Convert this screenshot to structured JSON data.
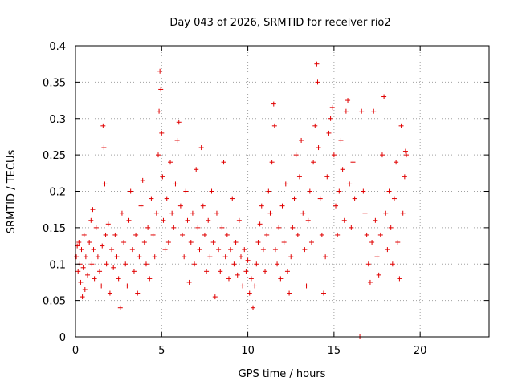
{
  "chart_data": {
    "type": "scatter",
    "title": "Day 043 of 2026, SRMTID for receiver rio2",
    "xlabel": "GPS time / hours",
    "ylabel": "SRMTID / TECUs",
    "xlim": [
      0,
      24
    ],
    "ylim": [
      0,
      0.4
    ],
    "xticks": [
      0,
      5,
      10,
      15,
      20
    ],
    "yticks": [
      0,
      0.05,
      0.1,
      0.15,
      0.2,
      0.25,
      0.3,
      0.35,
      0.4
    ],
    "xtick_labels": [
      "0",
      "5",
      "10",
      "15",
      "20"
    ],
    "ytick_labels": [
      "0",
      "0.05",
      "0.1",
      "0.15",
      "0.2",
      "0.25",
      "0.3",
      "0.35",
      "0.4"
    ],
    "grid": true,
    "marker": "+",
    "color": "#e00000",
    "series": [
      {
        "name": "SRMTID",
        "points": [
          [
            0.05,
            0.11
          ],
          [
            0.1,
            0.125
          ],
          [
            0.15,
            0.09
          ],
          [
            0.2,
            0.13
          ],
          [
            0.25,
            0.1
          ],
          [
            0.3,
            0.075
          ],
          [
            0.35,
            0.12
          ],
          [
            0.4,
            0.055
          ],
          [
            0.45,
            0.095
          ],
          [
            0.5,
            0.14
          ],
          [
            0.55,
            0.065
          ],
          [
            0.6,
            0.11
          ],
          [
            0.7,
            0.085
          ],
          [
            0.8,
            0.13
          ],
          [
            0.9,
            0.16
          ],
          [
            0.95,
            0.1
          ],
          [
            1.0,
            0.175
          ],
          [
            1.05,
            0.12
          ],
          [
            1.1,
            0.08
          ],
          [
            1.2,
            0.15
          ],
          [
            1.3,
            0.11
          ],
          [
            1.4,
            0.09
          ],
          [
            1.5,
            0.07
          ],
          [
            1.55,
            0.125
          ],
          [
            1.6,
            0.29
          ],
          [
            1.65,
            0.26
          ],
          [
            1.7,
            0.21
          ],
          [
            1.75,
            0.14
          ],
          [
            1.8,
            0.1
          ],
          [
            1.9,
            0.155
          ],
          [
            2.0,
            0.06
          ],
          [
            2.1,
            0.12
          ],
          [
            2.2,
            0.095
          ],
          [
            2.3,
            0.14
          ],
          [
            2.4,
            0.11
          ],
          [
            2.5,
            0.08
          ],
          [
            2.6,
            0.04
          ],
          [
            2.7,
            0.17
          ],
          [
            2.8,
            0.13
          ],
          [
            2.9,
            0.1
          ],
          [
            3.0,
            0.07
          ],
          [
            3.1,
            0.16
          ],
          [
            3.2,
            0.2
          ],
          [
            3.3,
            0.12
          ],
          [
            3.4,
            0.09
          ],
          [
            3.5,
            0.14
          ],
          [
            3.6,
            0.06
          ],
          [
            3.7,
            0.11
          ],
          [
            3.8,
            0.18
          ],
          [
            3.9,
            0.215
          ],
          [
            4.0,
            0.13
          ],
          [
            4.1,
            0.1
          ],
          [
            4.2,
            0.15
          ],
          [
            4.3,
            0.08
          ],
          [
            4.4,
            0.19
          ],
          [
            4.5,
            0.14
          ],
          [
            4.6,
            0.11
          ],
          [
            4.7,
            0.17
          ],
          [
            4.8,
            0.25
          ],
          [
            4.85,
            0.31
          ],
          [
            4.9,
            0.365
          ],
          [
            4.95,
            0.34
          ],
          [
            5.0,
            0.28
          ],
          [
            5.05,
            0.22
          ],
          [
            5.1,
            0.16
          ],
          [
            5.2,
            0.12
          ],
          [
            5.3,
            0.19
          ],
          [
            5.4,
            0.13
          ],
          [
            5.5,
            0.24
          ],
          [
            5.6,
            0.17
          ],
          [
            5.7,
            0.15
          ],
          [
            5.8,
            0.21
          ],
          [
            5.9,
            0.27
          ],
          [
            6.0,
            0.295
          ],
          [
            6.1,
            0.18
          ],
          [
            6.2,
            0.14
          ],
          [
            6.3,
            0.11
          ],
          [
            6.4,
            0.2
          ],
          [
            6.5,
            0.16
          ],
          [
            6.6,
            0.075
          ],
          [
            6.7,
            0.13
          ],
          [
            6.8,
            0.17
          ],
          [
            6.9,
            0.1
          ],
          [
            7.0,
            0.23
          ],
          [
            7.1,
            0.15
          ],
          [
            7.2,
            0.12
          ],
          [
            7.3,
            0.26
          ],
          [
            7.4,
            0.18
          ],
          [
            7.5,
            0.14
          ],
          [
            7.6,
            0.09
          ],
          [
            7.7,
            0.16
          ],
          [
            7.8,
            0.11
          ],
          [
            7.9,
            0.2
          ],
          [
            8.0,
            0.13
          ],
          [
            8.1,
            0.055
          ],
          [
            8.2,
            0.17
          ],
          [
            8.3,
            0.12
          ],
          [
            8.4,
            0.09
          ],
          [
            8.5,
            0.15
          ],
          [
            8.6,
            0.24
          ],
          [
            8.7,
            0.11
          ],
          [
            8.8,
            0.14
          ],
          [
            8.9,
            0.08
          ],
          [
            9.0,
            0.12
          ],
          [
            9.1,
            0.19
          ],
          [
            9.2,
            0.1
          ],
          [
            9.3,
            0.13
          ],
          [
            9.4,
            0.085
          ],
          [
            9.5,
            0.16
          ],
          [
            9.6,
            0.11
          ],
          [
            9.7,
            0.07
          ],
          [
            9.8,
            0.12
          ],
          [
            9.9,
            0.09
          ],
          [
            10.0,
            0.105
          ],
          [
            10.1,
            0.06
          ],
          [
            10.2,
            0.08
          ],
          [
            10.3,
            0.04
          ],
          [
            10.4,
            0.07
          ],
          [
            10.5,
            0.1
          ],
          [
            10.6,
            0.13
          ],
          [
            10.7,
            0.155
          ],
          [
            10.8,
            0.18
          ],
          [
            10.9,
            0.12
          ],
          [
            11.0,
            0.09
          ],
          [
            11.1,
            0.14
          ],
          [
            11.2,
            0.2
          ],
          [
            11.3,
            0.17
          ],
          [
            11.4,
            0.24
          ],
          [
            11.5,
            0.32
          ],
          [
            11.55,
            0.29
          ],
          [
            11.6,
            0.12
          ],
          [
            11.7,
            0.1
          ],
          [
            11.8,
            0.15
          ],
          [
            11.9,
            0.08
          ],
          [
            12.0,
            0.18
          ],
          [
            12.1,
            0.13
          ],
          [
            12.2,
            0.21
          ],
          [
            12.3,
            0.09
          ],
          [
            12.4,
            0.06
          ],
          [
            12.5,
            0.11
          ],
          [
            12.6,
            0.15
          ],
          [
            12.7,
            0.19
          ],
          [
            12.8,
            0.25
          ],
          [
            12.9,
            0.14
          ],
          [
            13.0,
            0.22
          ],
          [
            13.1,
            0.27
          ],
          [
            13.2,
            0.17
          ],
          [
            13.3,
            0.12
          ],
          [
            13.4,
            0.07
          ],
          [
            13.5,
            0.16
          ],
          [
            13.6,
            0.2
          ],
          [
            13.7,
            0.13
          ],
          [
            13.8,
            0.24
          ],
          [
            13.9,
            0.29
          ],
          [
            14.0,
            0.375
          ],
          [
            14.05,
            0.35
          ],
          [
            14.1,
            0.26
          ],
          [
            14.2,
            0.19
          ],
          [
            14.3,
            0.14
          ],
          [
            14.4,
            0.06
          ],
          [
            14.5,
            0.11
          ],
          [
            14.6,
            0.22
          ],
          [
            14.7,
            0.28
          ],
          [
            14.8,
            0.3
          ],
          [
            14.9,
            0.315
          ],
          [
            15.0,
            0.25
          ],
          [
            15.1,
            0.18
          ],
          [
            15.2,
            0.14
          ],
          [
            15.3,
            0.2
          ],
          [
            15.4,
            0.27
          ],
          [
            15.5,
            0.23
          ],
          [
            15.6,
            0.16
          ],
          [
            15.7,
            0.31
          ],
          [
            15.8,
            0.325
          ],
          [
            15.9,
            0.21
          ],
          [
            16.0,
            0.15
          ],
          [
            16.1,
            0.24
          ],
          [
            16.2,
            0.19
          ],
          [
            16.5,
            0.0
          ],
          [
            16.6,
            0.31
          ],
          [
            16.7,
            0.2
          ],
          [
            16.8,
            0.17
          ],
          [
            16.9,
            0.14
          ],
          [
            17.0,
            0.1
          ],
          [
            17.1,
            0.075
          ],
          [
            17.2,
            0.13
          ],
          [
            17.3,
            0.31
          ],
          [
            17.4,
            0.16
          ],
          [
            17.5,
            0.11
          ],
          [
            17.6,
            0.085
          ],
          [
            17.7,
            0.14
          ],
          [
            17.8,
            0.25
          ],
          [
            17.9,
            0.33
          ],
          [
            18.0,
            0.17
          ],
          [
            18.1,
            0.12
          ],
          [
            18.2,
            0.2
          ],
          [
            18.3,
            0.15
          ],
          [
            18.4,
            0.1
          ],
          [
            18.5,
            0.19
          ],
          [
            18.6,
            0.24
          ],
          [
            18.7,
            0.13
          ],
          [
            18.8,
            0.08
          ],
          [
            18.9,
            0.29
          ],
          [
            19.0,
            0.17
          ],
          [
            19.1,
            0.22
          ],
          [
            19.15,
            0.255
          ],
          [
            19.2,
            0.25
          ]
        ]
      }
    ]
  }
}
